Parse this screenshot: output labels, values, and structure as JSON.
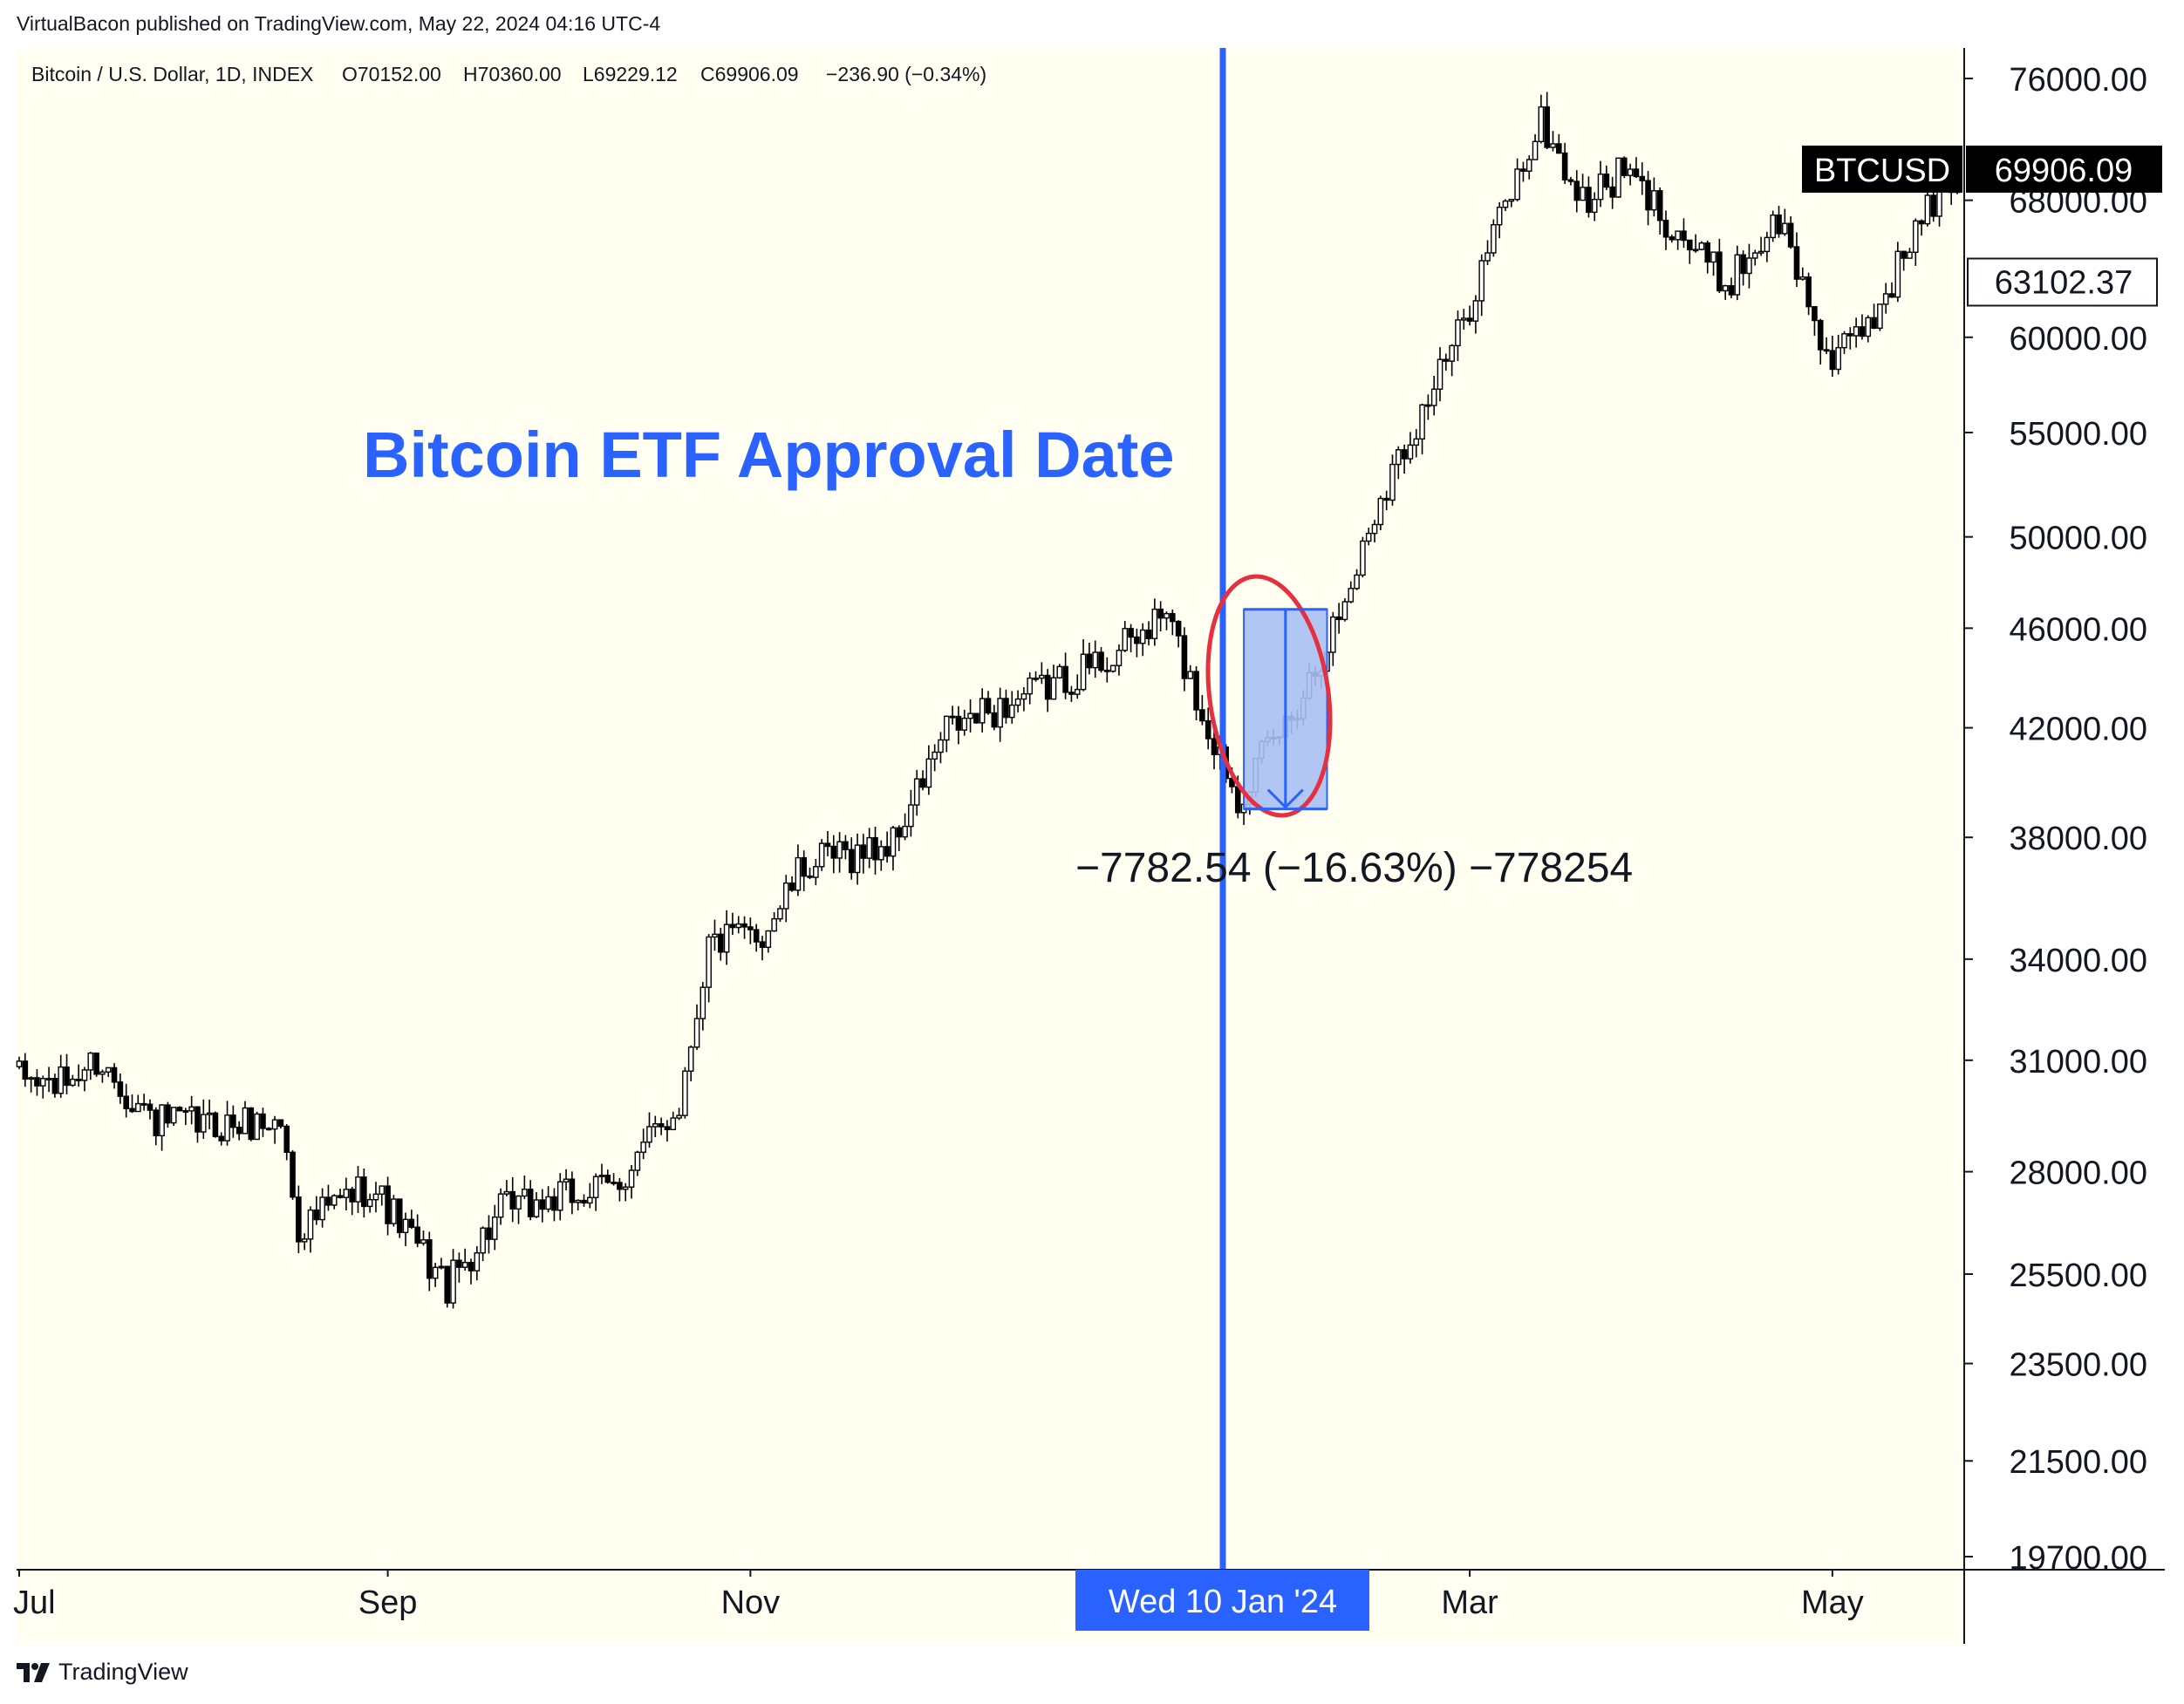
{
  "attribution": "VirtualBacon published on TradingView.com, May 22, 2024 04:16 UTC-4",
  "logo_text": "TradingView",
  "colors": {
    "background": "#fffef1",
    "candle": "#000000",
    "etf_line": "#2962ff",
    "measure_fill": "#a9c0f2",
    "measure_stroke": "#2962ff",
    "circle": "#e5303f",
    "date_badge": "#2962ff",
    "price_badge": "#000000"
  },
  "chart_data": {
    "type": "candlestick",
    "symbol": "Bitcoin / U.S. Dollar, 1D, INDEX",
    "ohlc_header": {
      "open_label": "O70152.00",
      "high_label": "H70360.00",
      "low_label": "L69229.12",
      "close_label": "C69906.09",
      "change_label": "−236.90 (−0.34%)"
    },
    "y_scale": "log",
    "ylim": [
      19700,
      76000
    ],
    "y_ticks": [
      "76000.00",
      "68000.00",
      "60000.00",
      "55000.00",
      "50000.00",
      "46000.00",
      "42000.00",
      "38000.00",
      "34000.00",
      "31000.00",
      "28000.00",
      "25500.00",
      "23500.00",
      "21500.00",
      "19700.00"
    ],
    "x_ticks": [
      "Jul",
      "Sep",
      "Nov",
      "Mar",
      "May"
    ],
    "x_range": [
      "2023-07-01",
      "2024-05-22"
    ],
    "price_path": [
      {
        "date": "2023-07-01",
        "close": 30500
      },
      {
        "date": "2023-07-08",
        "close": 30300
      },
      {
        "date": "2023-07-14",
        "close": 31000
      },
      {
        "date": "2023-07-24",
        "close": 29300
      },
      {
        "date": "2023-08-02",
        "close": 29200
      },
      {
        "date": "2023-08-14",
        "close": 29300
      },
      {
        "date": "2023-08-17",
        "close": 26600
      },
      {
        "date": "2023-08-29",
        "close": 27700
      },
      {
        "date": "2023-09-11",
        "close": 25200
      },
      {
        "date": "2023-09-20",
        "close": 27000
      },
      {
        "date": "2023-10-09",
        "close": 27600
      },
      {
        "date": "2023-10-20",
        "close": 29800
      },
      {
        "date": "2023-10-25",
        "close": 34500
      },
      {
        "date": "2023-11-03",
        "close": 34800
      },
      {
        "date": "2023-11-10",
        "close": 37000
      },
      {
        "date": "2023-11-25",
        "close": 37800
      },
      {
        "date": "2023-12-04",
        "close": 41900
      },
      {
        "date": "2023-12-20",
        "close": 43500
      },
      {
        "date": "2024-01-02",
        "close": 45000
      },
      {
        "date": "2024-01-10",
        "close": 46600
      },
      {
        "date": "2024-01-16",
        "close": 42500
      },
      {
        "date": "2024-01-22",
        "close": 39500
      },
      {
        "date": "2024-01-31",
        "close": 42500
      },
      {
        "date": "2024-02-09",
        "close": 47100
      },
      {
        "date": "2024-02-15",
        "close": 52000
      },
      {
        "date": "2024-02-28",
        "close": 60000
      },
      {
        "date": "2024-03-05",
        "close": 66000
      },
      {
        "date": "2024-03-13",
        "close": 73000
      },
      {
        "date": "2024-03-20",
        "close": 67800
      },
      {
        "date": "2024-03-27",
        "close": 69800
      },
      {
        "date": "2024-04-13",
        "close": 63000
      },
      {
        "date": "2024-04-22",
        "close": 66800
      },
      {
        "date": "2024-05-01",
        "close": 58400
      },
      {
        "date": "2024-05-08",
        "close": 61200
      },
      {
        "date": "2024-05-15",
        "close": 66200
      },
      {
        "date": "2024-05-22",
        "close": 69906.09
      }
    ],
    "current_price": {
      "symbol": "BTCUSD",
      "value": "69906.09"
    },
    "crosshair_price": "63102.37",
    "crosshair_date": "Wed 10 Jan '24",
    "annotation_title": "Bitcoin ETF Approval Date",
    "measure": {
      "from_date": "2024-01-23",
      "to_date": "2024-02-06",
      "from_price": 46800,
      "to_price": 39000,
      "label": "−7782.54 (−16.63%) −778254"
    }
  }
}
